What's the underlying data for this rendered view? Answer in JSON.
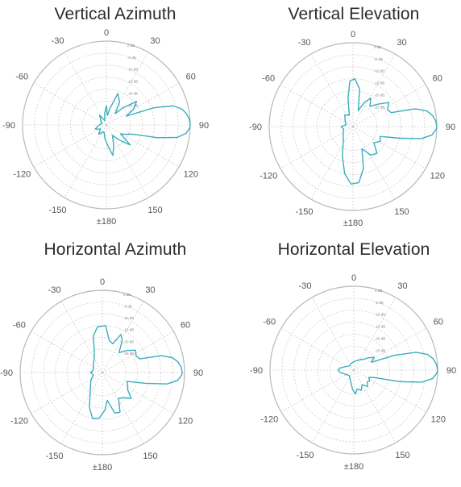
{
  "chart_data": [
    {
      "type": "polar-line",
      "title": "Vertical Azimuth",
      "angle_ticks": [
        {
          "angle": 0,
          "label": "0"
        },
        {
          "angle": 30,
          "label": "30"
        },
        {
          "angle": 60,
          "label": "60"
        },
        {
          "angle": 90,
          "label": "90"
        },
        {
          "angle": 120,
          "label": "120"
        },
        {
          "angle": 150,
          "label": "150"
        },
        {
          "angle": 180,
          "label": "±180"
        },
        {
          "angle": -150,
          "label": "-150"
        },
        {
          "angle": -120,
          "label": "-120"
        },
        {
          "angle": -90,
          "label": "-90"
        },
        {
          "angle": -60,
          "label": "-60"
        },
        {
          "angle": -30,
          "label": "-30"
        }
      ],
      "radial_ticks": [
        {
          "value": 0,
          "label": "0 dB"
        },
        {
          "value": -5,
          "label": "-5 dB"
        },
        {
          "value": -10,
          "label": "-10 dB"
        },
        {
          "value": -15,
          "label": "-15 dB"
        },
        {
          "value": -20,
          "label": "-20 dB"
        },
        {
          "value": -25,
          "label": "-25 dB"
        }
      ],
      "rlim": [
        -35,
        0
      ],
      "pattern": [
        {
          "angle": 90,
          "gain": 0.0
        },
        {
          "angle": 86,
          "gain": -0.3
        },
        {
          "angle": 82,
          "gain": -1.2
        },
        {
          "angle": 78,
          "gain": -2.8
        },
        {
          "angle": 74,
          "gain": -6
        },
        {
          "angle": 70,
          "gain": -14
        },
        {
          "angle": 66,
          "gain": -26
        },
        {
          "angle": 60,
          "gain": -22
        },
        {
          "angle": 52,
          "gain": -19
        },
        {
          "angle": 44,
          "gain": -25
        },
        {
          "angle": 38,
          "gain": -29
        },
        {
          "angle": 30,
          "gain": -24
        },
        {
          "angle": 20,
          "gain": -21
        },
        {
          "angle": 12,
          "gain": -28
        },
        {
          "angle": 6,
          "gain": -31
        },
        {
          "angle": 0,
          "gain": -27
        },
        {
          "angle": -8,
          "gain": -30
        },
        {
          "angle": -20,
          "gain": -33
        },
        {
          "angle": -35,
          "gain": -30
        },
        {
          "angle": -50,
          "gain": -32
        },
        {
          "angle": -70,
          "gain": -33
        },
        {
          "angle": -90,
          "gain": -32
        },
        {
          "angle": -110,
          "gain": -30
        },
        {
          "angle": -125,
          "gain": -32
        },
        {
          "angle": -140,
          "gain": -30
        },
        {
          "angle": -160,
          "gain": -32
        },
        {
          "angle": -175,
          "gain": -29
        },
        {
          "angle": 175,
          "gain": -26
        },
        {
          "angle": 168,
          "gain": -22
        },
        {
          "angle": 160,
          "gain": -26
        },
        {
          "angle": 150,
          "gain": -30
        },
        {
          "angle": 140,
          "gain": -27
        },
        {
          "angle": 130,
          "gain": -22
        },
        {
          "angle": 122,
          "gain": -28
        },
        {
          "angle": 116,
          "gain": -26
        },
        {
          "angle": 112,
          "gain": -25
        },
        {
          "angle": 108,
          "gain": -22
        },
        {
          "angle": 104,
          "gain": -13
        },
        {
          "angle": 100,
          "gain": -5
        },
        {
          "angle": 96,
          "gain": -1.5
        },
        {
          "angle": 92,
          "gain": -0.2
        }
      ]
    },
    {
      "type": "polar-line",
      "title": "Vertical Elevation",
      "angle_ticks": [
        {
          "angle": 0,
          "label": "0"
        },
        {
          "angle": 30,
          "label": "30"
        },
        {
          "angle": 60,
          "label": "60"
        },
        {
          "angle": 90,
          "label": "90"
        },
        {
          "angle": 120,
          "label": "120"
        },
        {
          "angle": 150,
          "label": "150"
        },
        {
          "angle": 180,
          "label": "±180"
        },
        {
          "angle": -150,
          "label": "-150"
        },
        {
          "angle": -120,
          "label": "-120"
        },
        {
          "angle": -90,
          "label": "-90"
        },
        {
          "angle": -60,
          "label": "-60"
        },
        {
          "angle": -30,
          "label": "-30"
        }
      ],
      "radial_ticks": [
        {
          "value": 0,
          "label": "0 dB"
        },
        {
          "value": -5,
          "label": "-5 dB"
        },
        {
          "value": -10,
          "label": "-10 dB"
        },
        {
          "value": -15,
          "label": "-15 dB"
        },
        {
          "value": -20,
          "label": "-20 dB"
        },
        {
          "value": -25,
          "label": "-25 dB"
        }
      ],
      "rlim": [
        -35,
        0
      ],
      "pattern": [
        {
          "angle": 90,
          "gain": 0.0
        },
        {
          "angle": 86,
          "gain": -0.4
        },
        {
          "angle": 82,
          "gain": -1.5
        },
        {
          "angle": 78,
          "gain": -3.5
        },
        {
          "angle": 74,
          "gain": -8
        },
        {
          "angle": 70,
          "gain": -18
        },
        {
          "angle": 64,
          "gain": -19
        },
        {
          "angle": 56,
          "gain": -17
        },
        {
          "angle": 48,
          "gain": -21
        },
        {
          "angle": 40,
          "gain": -24
        },
        {
          "angle": 32,
          "gain": -21
        },
        {
          "angle": 25,
          "gain": -24
        },
        {
          "angle": 18,
          "gain": -28
        },
        {
          "angle": 10,
          "gain": -19
        },
        {
          "angle": 2,
          "gain": -15
        },
        {
          "angle": -4,
          "gain": -16
        },
        {
          "angle": -10,
          "gain": -23
        },
        {
          "angle": -18,
          "gain": -30
        },
        {
          "angle": -35,
          "gain": -29
        },
        {
          "angle": -55,
          "gain": -31
        },
        {
          "angle": -75,
          "gain": -32
        },
        {
          "angle": -90,
          "gain": -30
        },
        {
          "angle": -105,
          "gain": -31
        },
        {
          "angle": -125,
          "gain": -30
        },
        {
          "angle": -145,
          "gain": -28
        },
        {
          "angle": -160,
          "gain": -22
        },
        {
          "angle": -170,
          "gain": -15
        },
        {
          "angle": -178,
          "gain": -11
        },
        {
          "angle": 174,
          "gain": -11.5
        },
        {
          "angle": 166,
          "gain": -17
        },
        {
          "angle": 158,
          "gain": -25
        },
        {
          "angle": 148,
          "gain": -21
        },
        {
          "angle": 138,
          "gain": -20
        },
        {
          "angle": 128,
          "gain": -24
        },
        {
          "angle": 118,
          "gain": -22
        },
        {
          "angle": 110,
          "gain": -23
        },
        {
          "angle": 104,
          "gain": -15
        },
        {
          "angle": 100,
          "gain": -6
        },
        {
          "angle": 96,
          "gain": -1.8
        },
        {
          "angle": 92,
          "gain": -0.3
        }
      ]
    },
    {
      "type": "polar-line",
      "title": "Horizontal Azimuth",
      "angle_ticks": [
        {
          "angle": 0,
          "label": "0"
        },
        {
          "angle": 30,
          "label": "30"
        },
        {
          "angle": 60,
          "label": "60"
        },
        {
          "angle": 90,
          "label": "90"
        },
        {
          "angle": 120,
          "label": "120"
        },
        {
          "angle": 150,
          "label": "150"
        },
        {
          "angle": 180,
          "label": "±180"
        },
        {
          "angle": -150,
          "label": "-150"
        },
        {
          "angle": -120,
          "label": "-120"
        },
        {
          "angle": -90,
          "label": "-90"
        },
        {
          "angle": -60,
          "label": "-60"
        },
        {
          "angle": -30,
          "label": "-30"
        }
      ],
      "radial_ticks": [
        {
          "value": 0,
          "label": "0 dB"
        },
        {
          "value": -5,
          "label": "-5 dB"
        },
        {
          "value": -10,
          "label": "-10 dB"
        },
        {
          "value": -15,
          "label": "-15 dB"
        },
        {
          "value": -20,
          "label": "-20 dB"
        },
        {
          "value": -25,
          "label": "-25 dB"
        }
      ],
      "rlim": [
        -35,
        0
      ],
      "pattern": [
        {
          "angle": 90,
          "gain": -1.0
        },
        {
          "angle": 86,
          "gain": -1.4
        },
        {
          "angle": 82,
          "gain": -2.5
        },
        {
          "angle": 78,
          "gain": -4.5
        },
        {
          "angle": 74,
          "gain": -9
        },
        {
          "angle": 70,
          "gain": -18
        },
        {
          "angle": 64,
          "gain": -19
        },
        {
          "angle": 56,
          "gain": -18
        },
        {
          "angle": 48,
          "gain": -21
        },
        {
          "angle": 40,
          "gain": -24
        },
        {
          "angle": 32,
          "gain": -19
        },
        {
          "angle": 26,
          "gain": -17
        },
        {
          "angle": 20,
          "gain": -22
        },
        {
          "angle": 12,
          "gain": -21
        },
        {
          "angle": 4,
          "gain": -15
        },
        {
          "angle": -6,
          "gain": -15.5
        },
        {
          "angle": -14,
          "gain": -19
        },
        {
          "angle": -20,
          "gain": -25
        },
        {
          "angle": -30,
          "gain": -28
        },
        {
          "angle": -50,
          "gain": -30
        },
        {
          "angle": -75,
          "gain": -31
        },
        {
          "angle": -90,
          "gain": -30
        },
        {
          "angle": -105,
          "gain": -31
        },
        {
          "angle": -125,
          "gain": -29
        },
        {
          "angle": -145,
          "gain": -26
        },
        {
          "angle": -160,
          "gain": -19
        },
        {
          "angle": -168,
          "gain": -15
        },
        {
          "angle": -176,
          "gain": -15.5
        },
        {
          "angle": 176,
          "gain": -19
        },
        {
          "angle": 170,
          "gain": -23
        },
        {
          "angle": 163,
          "gain": -17
        },
        {
          "angle": 156,
          "gain": -16.5
        },
        {
          "angle": 148,
          "gain": -22
        },
        {
          "angle": 140,
          "gain": -21
        },
        {
          "angle": 132,
          "gain": -18.5
        },
        {
          "angle": 124,
          "gain": -22
        },
        {
          "angle": 116,
          "gain": -23
        },
        {
          "angle": 110,
          "gain": -24
        },
        {
          "angle": 104,
          "gain": -16
        },
        {
          "angle": 100,
          "gain": -7
        },
        {
          "angle": 96,
          "gain": -2.8
        },
        {
          "angle": 92,
          "gain": -1.2
        }
      ]
    },
    {
      "type": "polar-line",
      "title": "Horizontal Elevation",
      "angle_ticks": [
        {
          "angle": 0,
          "label": "0"
        },
        {
          "angle": 30,
          "label": "30"
        },
        {
          "angle": 60,
          "label": "60"
        },
        {
          "angle": 90,
          "label": "90"
        },
        {
          "angle": 120,
          "label": "120"
        },
        {
          "angle": 150,
          "label": "150"
        },
        {
          "angle": 180,
          "label": "±180"
        },
        {
          "angle": -150,
          "label": "-150"
        },
        {
          "angle": -120,
          "label": "-120"
        },
        {
          "angle": -90,
          "label": "-90"
        },
        {
          "angle": -60,
          "label": "-60"
        },
        {
          "angle": -30,
          "label": "-30"
        }
      ],
      "radial_ticks": [
        {
          "value": 0,
          "label": "0 dB"
        },
        {
          "value": -5,
          "label": "-5 dB"
        },
        {
          "value": -10,
          "label": "-10 dB"
        },
        {
          "value": -15,
          "label": "-15 dB"
        },
        {
          "value": -20,
          "label": "-20 dB"
        },
        {
          "value": -25,
          "label": "-25 dB"
        }
      ],
      "rlim": [
        -35,
        0
      ],
      "pattern": [
        {
          "angle": 90,
          "gain": 0.0
        },
        {
          "angle": 86,
          "gain": -0.4
        },
        {
          "angle": 82,
          "gain": -1.5
        },
        {
          "angle": 78,
          "gain": -3.5
        },
        {
          "angle": 74,
          "gain": -8
        },
        {
          "angle": 70,
          "gain": -17
        },
        {
          "angle": 66,
          "gain": -27
        },
        {
          "angle": 58,
          "gain": -25
        },
        {
          "angle": 50,
          "gain": -27
        },
        {
          "angle": 42,
          "gain": -29
        },
        {
          "angle": 30,
          "gain": -30
        },
        {
          "angle": 15,
          "gain": -31
        },
        {
          "angle": 0,
          "gain": -31.5
        },
        {
          "angle": -20,
          "gain": -32
        },
        {
          "angle": -45,
          "gain": -32.5
        },
        {
          "angle": -70,
          "gain": -31
        },
        {
          "angle": -82,
          "gain": -29
        },
        {
          "angle": -90,
          "gain": -28.5
        },
        {
          "angle": -98,
          "gain": -29
        },
        {
          "angle": -115,
          "gain": -31
        },
        {
          "angle": -140,
          "gain": -32
        },
        {
          "angle": -165,
          "gain": -30
        },
        {
          "angle": -176,
          "gain": -27
        },
        {
          "angle": 176,
          "gain": -25
        },
        {
          "angle": 170,
          "gain": -27
        },
        {
          "angle": 160,
          "gain": -26
        },
        {
          "angle": 150,
          "gain": -28
        },
        {
          "angle": 140,
          "gain": -26
        },
        {
          "angle": 132,
          "gain": -27.5
        },
        {
          "angle": 124,
          "gain": -27
        },
        {
          "angle": 116,
          "gain": -28
        },
        {
          "angle": 110,
          "gain": -26
        },
        {
          "angle": 104,
          "gain": -15
        },
        {
          "angle": 100,
          "gain": -6
        },
        {
          "angle": 96,
          "gain": -1.8
        },
        {
          "angle": 92,
          "gain": -0.3
        }
      ]
    }
  ],
  "colors": {
    "pattern_line": "#3aaebd",
    "outer_ring": "#b9b9b9",
    "grid": "#cfcfcf",
    "title": "#2b2b2b",
    "angle_label": "#555555",
    "db_label": "#8a8a8a"
  }
}
